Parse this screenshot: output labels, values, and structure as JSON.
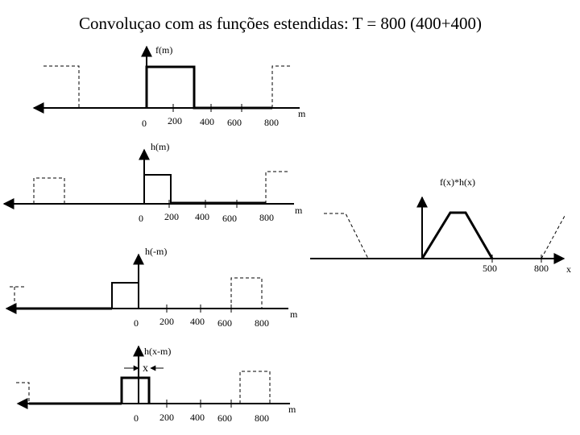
{
  "title": "Convoluçao com as funções estendidas: T = 800 (400+400)",
  "panels": {
    "f": {
      "ylabel": "f(m)",
      "xlabel": "m",
      "ticks": [
        "0",
        "200",
        "400",
        "600",
        "800"
      ]
    },
    "h": {
      "ylabel": "h(m)",
      "xlabel": "m",
      "ticks": [
        "0",
        "200",
        "400",
        "600",
        "800"
      ]
    },
    "hneg": {
      "ylabel": "h(-m)",
      "xlabel": "m",
      "ticks": [
        "0",
        "200",
        "400",
        "600",
        "800"
      ]
    },
    "hshift": {
      "ylabel": "h(x-m)",
      "shift_label": "x",
      "xlabel": "m",
      "ticks": [
        "0",
        "200",
        "400",
        "600",
        "800"
      ]
    },
    "conv": {
      "ylabel": "f(x)*h(x)",
      "xlabel": "x",
      "ticks": [
        "500",
        "800"
      ]
    }
  }
}
